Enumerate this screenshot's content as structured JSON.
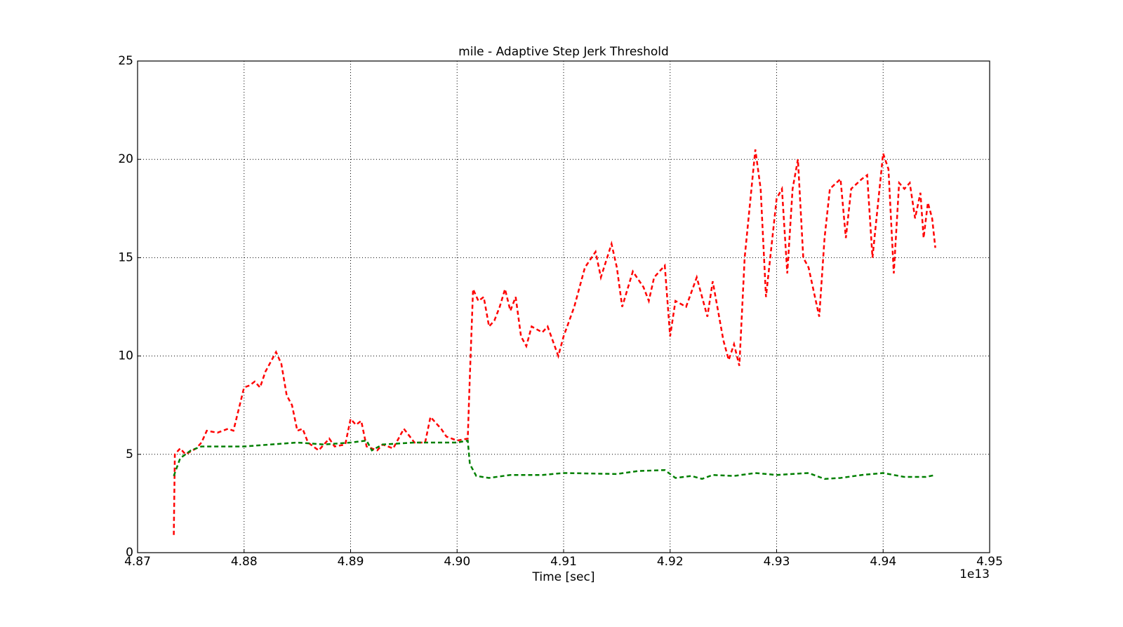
{
  "chart_data": {
    "type": "line",
    "title": "mile - Adaptive Step Jerk Threshold",
    "xlabel": "Time [sec]",
    "x_offset_label": "1e13",
    "xlim": [
      4.87,
      4.95
    ],
    "xticks": [
      4.87,
      4.88,
      4.89,
      {
        "value": 4.9,
        "label": "4.90"
      },
      4.91,
      4.92,
      4.93,
      4.94,
      4.95
    ],
    "ylim": [
      0,
      25
    ],
    "yticks": [
      0,
      5,
      10,
      15,
      20,
      25
    ],
    "grid": true,
    "series": [
      {
        "color": "#ff0000",
        "x": [
          4.8734,
          4.8735,
          4.874,
          4.8745,
          4.8755,
          4.876,
          4.8765,
          4.8775,
          4.8785,
          4.879,
          4.88,
          4.8805,
          4.881,
          4.8815,
          4.882,
          4.883,
          4.8835,
          4.884,
          4.8845,
          4.885,
          4.8855,
          4.886,
          4.887,
          4.888,
          4.8885,
          4.8895,
          4.89,
          4.8905,
          4.891,
          4.8915,
          4.8925,
          4.893,
          4.894,
          4.895,
          4.896,
          4.897,
          4.8975,
          4.8985,
          4.899,
          4.9,
          4.901,
          4.9012,
          4.9015,
          4.902,
          4.9025,
          4.903,
          4.9035,
          4.904,
          4.9045,
          4.905,
          4.9055,
          4.906,
          4.9065,
          4.907,
          4.908,
          4.9085,
          4.9095,
          4.91,
          4.911,
          4.912,
          4.913,
          4.9135,
          4.9145,
          4.915,
          4.9155,
          4.9165,
          4.9175,
          4.918,
          4.9185,
          4.9195,
          4.92,
          4.9205,
          4.9215,
          4.9225,
          4.9235,
          4.924,
          4.925,
          4.9255,
          4.926,
          4.9265,
          4.927,
          4.928,
          4.9285,
          4.929,
          4.93,
          4.9305,
          4.931,
          4.9315,
          4.932,
          4.9325,
          4.933,
          4.934,
          4.9345,
          4.935,
          4.936,
          4.9365,
          4.937,
          4.938,
          4.9385,
          4.939,
          4.94,
          4.9405,
          4.941,
          4.9415,
          4.942,
          4.9425,
          4.943,
          4.9435,
          4.9438,
          4.9442,
          4.9446,
          4.9449
        ],
        "values": [
          0.9,
          5.0,
          5.3,
          5.0,
          5.3,
          5.6,
          6.2,
          6.1,
          6.3,
          6.2,
          8.4,
          8.5,
          8.7,
          8.4,
          9.2,
          10.2,
          9.6,
          8.0,
          7.5,
          6.2,
          6.3,
          5.6,
          5.2,
          5.8,
          5.4,
          5.5,
          6.8,
          6.5,
          6.7,
          5.4,
          5.2,
          5.5,
          5.3,
          6.3,
          5.6,
          5.6,
          6.9,
          6.3,
          5.9,
          5.7,
          5.8,
          9.0,
          13.4,
          12.8,
          13.0,
          11.5,
          11.8,
          12.5,
          13.4,
          12.3,
          13.0,
          11.0,
          10.5,
          11.5,
          11.2,
          11.5,
          10.0,
          11.0,
          12.5,
          14.5,
          15.3,
          14.0,
          15.7,
          14.5,
          12.5,
          14.3,
          13.5,
          12.8,
          14.0,
          14.6,
          11.0,
          12.8,
          12.5,
          14.0,
          12.0,
          13.8,
          10.8,
          9.8,
          10.6,
          9.5,
          15.0,
          20.5,
          18.5,
          13.0,
          18.0,
          18.5,
          14.2,
          18.5,
          20.0,
          15.0,
          14.5,
          12.0,
          16.0,
          18.5,
          19.0,
          16.0,
          18.5,
          19.0,
          19.2,
          15.0,
          20.3,
          19.5,
          14.2,
          18.8,
          18.5,
          18.8,
          17.0,
          18.3,
          16.0,
          17.8,
          17.0,
          15.5
        ]
      },
      {
        "color": "#007f00",
        "x": [
          4.8734,
          4.874,
          4.875,
          4.876,
          4.88,
          4.8825,
          4.885,
          4.8875,
          4.89,
          4.8915,
          4.892,
          4.893,
          4.896,
          4.9,
          4.901,
          4.9012,
          4.9018,
          4.903,
          4.905,
          4.908,
          4.91,
          4.915,
          4.917,
          4.9195,
          4.9205,
          4.922,
          4.923,
          4.924,
          4.926,
          4.928,
          4.93,
          4.933,
          4.9345,
          4.936,
          4.938,
          4.94,
          4.942,
          4.944,
          4.9449
        ],
        "values": [
          3.9,
          4.8,
          5.2,
          5.4,
          5.4,
          5.5,
          5.6,
          5.5,
          5.6,
          5.7,
          5.2,
          5.5,
          5.6,
          5.6,
          5.7,
          4.5,
          3.9,
          3.8,
          3.95,
          3.95,
          4.05,
          4.0,
          4.15,
          4.2,
          3.8,
          3.9,
          3.75,
          3.95,
          3.9,
          4.05,
          3.95,
          4.05,
          3.75,
          3.8,
          3.95,
          4.05,
          3.85,
          3.85,
          3.95
        ]
      }
    ]
  }
}
